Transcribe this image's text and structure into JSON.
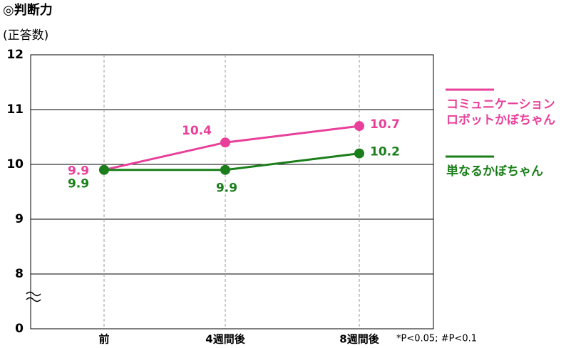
{
  "chart_data": {
    "type": "line",
    "title": "◎判断力",
    "y_label": "(正答数)",
    "categories": [
      "前",
      "4週間後",
      "8週間後"
    ],
    "series": [
      {
        "name": "コミュニケーションロボットかぼちゃん",
        "color": "#e8409a",
        "values": [
          9.9,
          10.4,
          10.7
        ]
      },
      {
        "name": "単なるかぼちゃん",
        "color": "#1a7f1a",
        "values": [
          9.9,
          9.9,
          10.2
        ]
      }
    ],
    "ylim": [
      0,
      12
    ],
    "yticks": [
      0,
      8,
      9,
      10,
      11,
      12
    ],
    "axis_break": [
      0,
      8
    ],
    "grid": true,
    "note": "*P<0.05; #P<0.1"
  }
}
